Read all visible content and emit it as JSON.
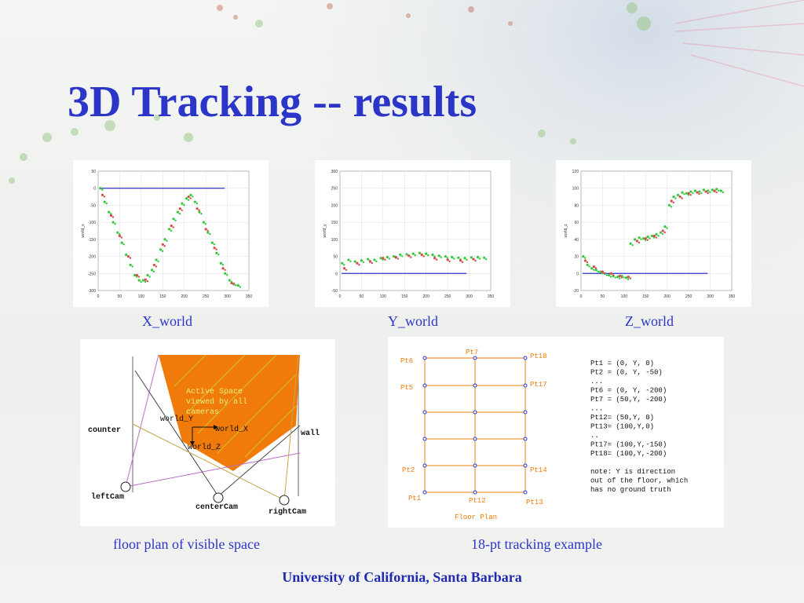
{
  "slide": {
    "title": "3D Tracking -- results",
    "footer": "University of California, Santa Barbara",
    "colors": {
      "title": "#2b35c8",
      "accent_orange": "#f07a0a",
      "series_green": "#35c83a",
      "series_red": "#d84a4a",
      "reference_blue": "#2b35c8"
    }
  },
  "captions": {
    "x_world": "X_world",
    "y_world": "Y_world",
    "z_world": "Z_world",
    "floor_plan": "floor plan of visible space",
    "tracking": "18-pt tracking example"
  },
  "chart_data": [
    {
      "type": "scatter",
      "caption": "X_world",
      "ylabel": "world_x",
      "xlim": [
        0,
        350
      ],
      "ylim": [
        -300,
        50
      ],
      "xticks": [
        "0",
        "50",
        "100",
        "150",
        "200",
        "250",
        "300",
        "350"
      ],
      "yticks": [
        "50",
        "0",
        "-50",
        "-100",
        "-150",
        "-200",
        "-250",
        "-300"
      ],
      "grid": true,
      "reference_line": 0,
      "series": [
        {
          "color": "green",
          "x": [
            5,
            15,
            25,
            35,
            45,
            55,
            65,
            75,
            85,
            95,
            105,
            115,
            125,
            135,
            145,
            155,
            165,
            175,
            185,
            195,
            205,
            215,
            225,
            235,
            245,
            255,
            265,
            275,
            285,
            295,
            305,
            315,
            325
          ],
          "values": [
            0,
            -40,
            -70,
            -100,
            -130,
            -160,
            -195,
            -225,
            -255,
            -270,
            -270,
            -255,
            -240,
            -210,
            -180,
            -150,
            -120,
            -90,
            -70,
            -45,
            -30,
            -20,
            -40,
            -70,
            -100,
            -130,
            -160,
            -190,
            -220,
            -250,
            -270,
            -280,
            -285
          ]
        },
        {
          "color": "red",
          "x": [
            10,
            30,
            50,
            70,
            90,
            110,
            130,
            150,
            170,
            190,
            210,
            230,
            250,
            270,
            290,
            310
          ],
          "values": [
            -20,
            -80,
            -140,
            -200,
            -255,
            -268,
            -225,
            -165,
            -110,
            -60,
            -25,
            -60,
            -120,
            -175,
            -235,
            -278
          ]
        }
      ]
    },
    {
      "type": "scatter",
      "caption": "Y_world",
      "ylabel": "world_y",
      "xlim": [
        0,
        350
      ],
      "ylim": [
        -50,
        300
      ],
      "xticks": [
        "0",
        "50",
        "100",
        "150",
        "200",
        "250",
        "300",
        "350"
      ],
      "yticks": [
        "300",
        "250",
        "200",
        "150",
        "100",
        "50",
        "0",
        "-50"
      ],
      "grid": true,
      "reference_line": 0,
      "series": [
        {
          "color": "green",
          "x": [
            5,
            20,
            35,
            50,
            65,
            80,
            95,
            110,
            125,
            140,
            155,
            170,
            185,
            200,
            215,
            230,
            245,
            260,
            275,
            290,
            305,
            320,
            335
          ],
          "values": [
            30,
            40,
            35,
            38,
            42,
            40,
            45,
            48,
            50,
            55,
            56,
            58,
            60,
            58,
            55,
            52,
            50,
            48,
            46,
            45,
            47,
            48,
            46
          ]
        },
        {
          "color": "red",
          "x": [
            10,
            40,
            70,
            100,
            130,
            160,
            190,
            220,
            250,
            280,
            310
          ],
          "values": [
            15,
            30,
            35,
            45,
            48,
            52,
            55,
            45,
            40,
            38,
            42
          ]
        }
      ]
    },
    {
      "type": "scatter",
      "caption": "Z_world",
      "ylabel": "world_z",
      "xlim": [
        0,
        350
      ],
      "ylim": [
        -20,
        120
      ],
      "xticks": [
        "0",
        "50",
        "100",
        "150",
        "200",
        "250",
        "300",
        "350"
      ],
      "yticks": [
        "120",
        "100",
        "80",
        "60",
        "40",
        "20",
        "0",
        "-20"
      ],
      "grid": true,
      "reference_line": 0,
      "series": [
        {
          "color": "green",
          "x": [
            5,
            15,
            25,
            35,
            45,
            55,
            65,
            75,
            85,
            95,
            105,
            115,
            125,
            135,
            145,
            155,
            165,
            175,
            185,
            195,
            205,
            215,
            225,
            235,
            245,
            255,
            265,
            275,
            285,
            295,
            305,
            315,
            325
          ],
          "values": [
            20,
            10,
            6,
            4,
            2,
            0,
            -2,
            -3,
            -4,
            -3,
            -5,
            35,
            40,
            42,
            41,
            43,
            44,
            46,
            48,
            55,
            80,
            90,
            92,
            95,
            94,
            96,
            97,
            96,
            98,
            97,
            98,
            99,
            97
          ]
        },
        {
          "color": "red",
          "x": [
            10,
            30,
            50,
            70,
            90,
            110,
            130,
            150,
            170,
            190,
            210,
            230,
            250,
            270,
            290,
            310
          ],
          "values": [
            15,
            8,
            2,
            0,
            -3,
            -4,
            38,
            41,
            44,
            50,
            85,
            90,
            94,
            95,
            96,
            97
          ]
        }
      ]
    }
  ],
  "floor_plan": {
    "active_text": [
      "Active Space",
      "viewed by all",
      "cameras"
    ],
    "labels": {
      "world_y": "world_Y",
      "world_x": "world_X",
      "world_z": "world_Z",
      "counter": "counter",
      "wall": "wall",
      "left_cam": "leftCam",
      "center_cam": "centerCam",
      "right_cam": "rightCam"
    }
  },
  "tracking": {
    "grid_labels": {
      "pt6": "Pt6",
      "pt7": "Pt7",
      "pt18": "Pt18",
      "pt5": "Pt5",
      "pt17": "Pt17",
      "pt2": "Pt2",
      "pt14": "Pt14",
      "pt1": "Pt1",
      "pt12": "Pt12",
      "pt13": "Pt13"
    },
    "floor_plan_label": "Floor Plan",
    "notes": [
      "Pt1 = (0, Y, 0)",
      "Pt2 = (0, Y, -50)",
      "...",
      "Pt6 = (0, Y, -200)",
      "Pt7 = (50,Y, -200)",
      "...",
      "Pt12= (50,Y, 0)",
      "Pt13= (100,Y,0)",
      "..",
      "Pt17= (100,Y,-150)",
      "Pt18= (100,Y,-200)",
      "",
      "note: Y is direction",
      "out of the floor, which",
      "has no ground truth"
    ]
  }
}
